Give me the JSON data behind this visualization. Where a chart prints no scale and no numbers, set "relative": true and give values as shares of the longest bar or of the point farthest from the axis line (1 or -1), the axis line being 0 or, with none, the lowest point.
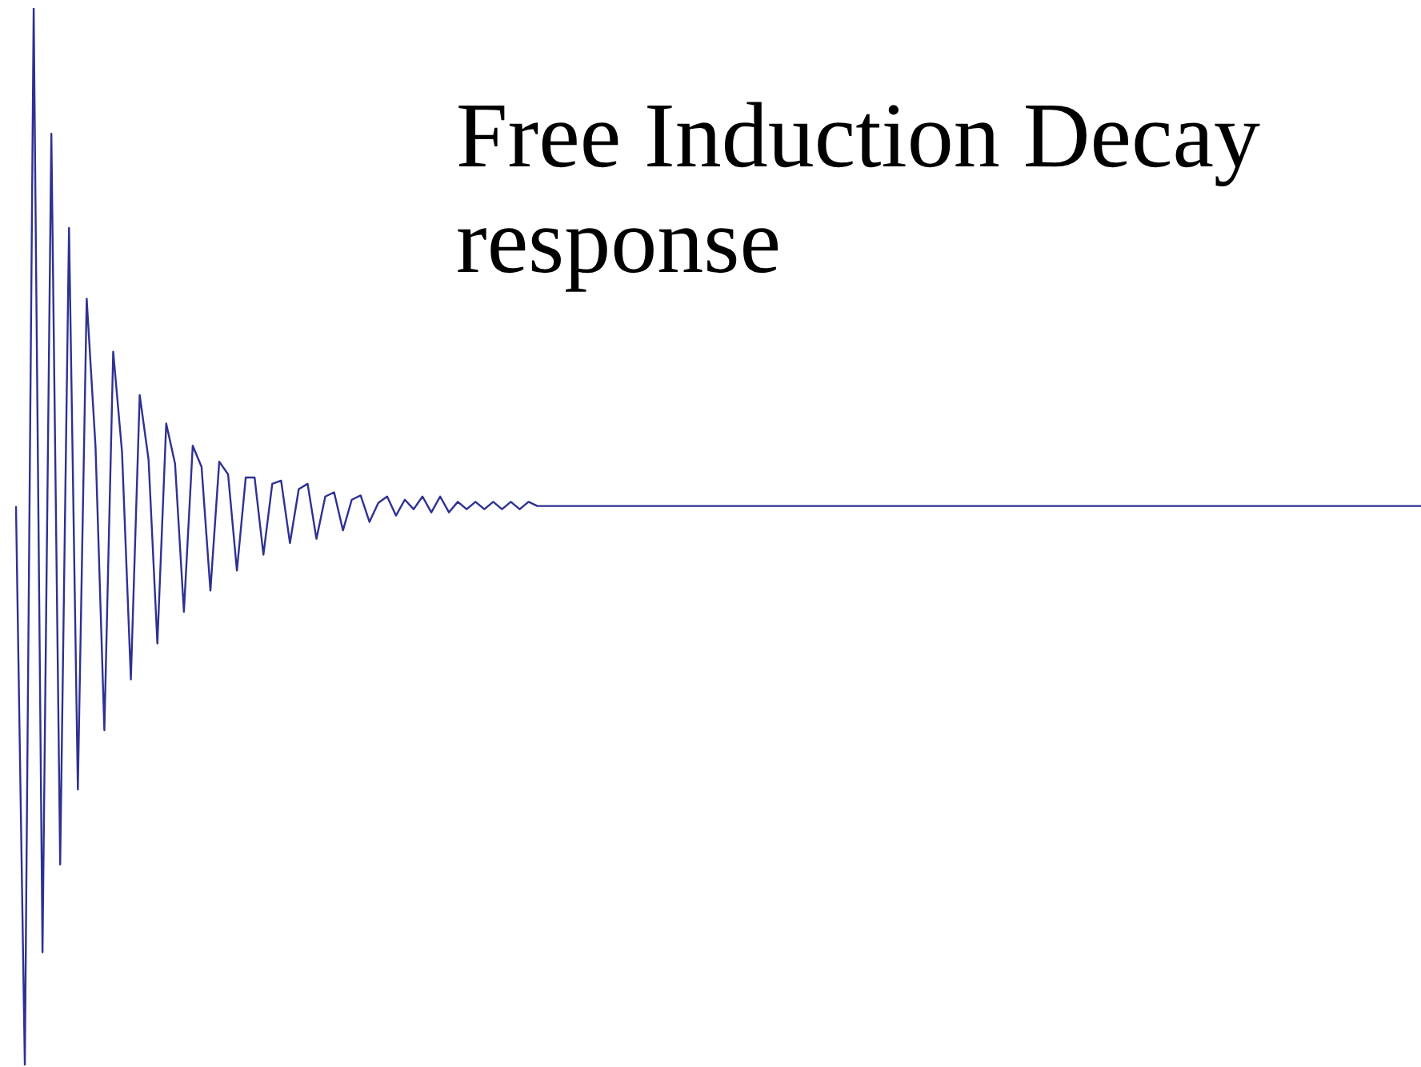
{
  "chart_data": {
    "type": "line",
    "title": "Free Induction Decay response",
    "relative": true,
    "legend": false,
    "marker": "none",
    "line_style": "solid",
    "categories": [
      null,
      null,
      null,
      null,
      null,
      null,
      null,
      null,
      null,
      null,
      null,
      null,
      null,
      null,
      null,
      null,
      null,
      null,
      null,
      null,
      null,
      null,
      null,
      null,
      null,
      null,
      null,
      null,
      null,
      null,
      null,
      null,
      null,
      null,
      null,
      null,
      null,
      null,
      null,
      null,
      null,
      null,
      null,
      null,
      null,
      null,
      null,
      null,
      null,
      null,
      null,
      null,
      null,
      null,
      null,
      null,
      null,
      null,
      null,
      null,
      null,
      null,
      null,
      null,
      null,
      null,
      null,
      null,
      null,
      null,
      null,
      null,
      null,
      null,
      null,
      null,
      null,
      null,
      null,
      null,
      null,
      null,
      null,
      null,
      null,
      null,
      null,
      null,
      null,
      null,
      null,
      null,
      null,
      null,
      null,
      null,
      null,
      null,
      null,
      null,
      null,
      null,
      null,
      null,
      null,
      null,
      null,
      null,
      null,
      null,
      null,
      null,
      null,
      null,
      null,
      null,
      null,
      null,
      null,
      null,
      null,
      null,
      null,
      null,
      null,
      null,
      null,
      null,
      null,
      null,
      null,
      null,
      null,
      null,
      null,
      null,
      null,
      null,
      null,
      null,
      null,
      null,
      null,
      null,
      null,
      null,
      null,
      null,
      null,
      null,
      null,
      null,
      null,
      null,
      null,
      null,
      null,
      null,
      null,
      null
    ],
    "series": [
      {
        "color": "#2e3192",
        "values": [
          0.529,
          0,
          1,
          0.107,
          0.881,
          0.19,
          0.792,
          0.261,
          0.725,
          0.585,
          0.317,
          0.675,
          0.58,
          0.365,
          0.634,
          0.573,
          0.399,
          0.607,
          0.569,
          0.429,
          0.586,
          0.566,
          0.449,
          0.571,
          0.559,
          0.468,
          0.556,
          0.556,
          0.483,
          0.55,
          0.553,
          0.494,
          0.545,
          0.55,
          0.498,
          0.538,
          0.542,
          0.506,
          0.535,
          0.539,
          0.514,
          0.532,
          0.538,
          0.52,
          0.535,
          0.526,
          0.538,
          0.523,
          0.538,
          0.523,
          0.533,
          0.526,
          0.533,
          0.526,
          0.533,
          0.526,
          0.533,
          0.526,
          0.533,
          0.529,
          0.529,
          0.529,
          0.529,
          0.529,
          0.529,
          0.529,
          0.529,
          0.529,
          0.529,
          0.529,
          0.529,
          0.529,
          0.529,
          0.529,
          0.529,
          0.529,
          0.529,
          0.529,
          0.529,
          0.529,
          0.529,
          0.529,
          0.529,
          0.529,
          0.529,
          0.529,
          0.529,
          0.529,
          0.529,
          0.529,
          0.529,
          0.529,
          0.529,
          0.529,
          0.529,
          0.529,
          0.529,
          0.529,
          0.529,
          0.529,
          0.529,
          0.529,
          0.529,
          0.529,
          0.529,
          0.529,
          0.529,
          0.529,
          0.529,
          0.529,
          0.529,
          0.529,
          0.529,
          0.529,
          0.529,
          0.529,
          0.529,
          0.529,
          0.529,
          0.529,
          0.529,
          0.529,
          0.529,
          0.529,
          0.529,
          0.529,
          0.529,
          0.529,
          0.529,
          0.529,
          0.529,
          0.529,
          0.529,
          0.529,
          0.529,
          0.529,
          0.529,
          0.529,
          0.529,
          0.529,
          0.529,
          0.529,
          0.529,
          0.529,
          0.529,
          0.529,
          0.529,
          0.529,
          0.529,
          0.529,
          0.529,
          0.529,
          0.529,
          0.529,
          0.529,
          0.529,
          0.529,
          0.529,
          0.529,
          0.529
        ]
      }
    ]
  }
}
